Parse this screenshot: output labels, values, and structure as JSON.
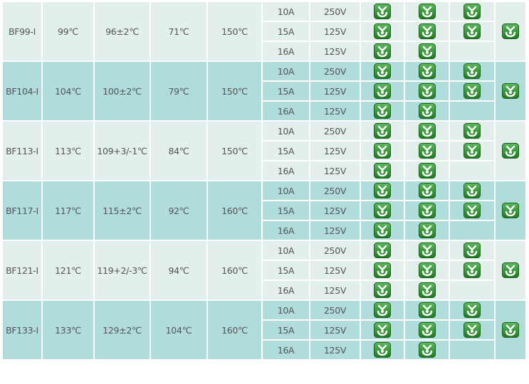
{
  "colors": {
    "row_light": "#e3efec",
    "row_teal": "#b0dcdc",
    "icon_green": "#2e8b2e",
    "text": "#555555"
  },
  "icon": "certification-mark-icon",
  "products": [
    {
      "model": "BF99-I",
      "t1": "99℃",
      "t2": "96±2℃",
      "t3": "71℃",
      "t4": "150℃",
      "ratings": [
        {
          "current": "10A",
          "voltage": "250V",
          "marks": [
            true,
            true,
            true
          ]
        },
        {
          "current": "15A",
          "voltage": "125V",
          "marks": [
            true,
            true,
            true
          ]
        },
        {
          "current": "16A",
          "voltage": "125V",
          "marks": [
            true,
            true,
            false
          ]
        }
      ],
      "group_mark": true
    },
    {
      "model": "BF104-I",
      "t1": "104℃",
      "t2": "100±2℃",
      "t3": "79℃",
      "t4": "150℃",
      "ratings": [
        {
          "current": "10A",
          "voltage": "250V",
          "marks": [
            true,
            true,
            true
          ]
        },
        {
          "current": "15A",
          "voltage": "125V",
          "marks": [
            true,
            true,
            true
          ]
        },
        {
          "current": "16A",
          "voltage": "125V",
          "marks": [
            true,
            true,
            false
          ]
        }
      ],
      "group_mark": true
    },
    {
      "model": "BF113-I",
      "t1": "113℃",
      "t2": "109+3/-1℃",
      "t3": "84℃",
      "t4": "150℃",
      "ratings": [
        {
          "current": "10A",
          "voltage": "250V",
          "marks": [
            true,
            true,
            true
          ]
        },
        {
          "current": "15A",
          "voltage": "125V",
          "marks": [
            true,
            true,
            true
          ]
        },
        {
          "current": "16A",
          "voltage": "125V",
          "marks": [
            true,
            true,
            false
          ]
        }
      ],
      "group_mark": true
    },
    {
      "model": "BF117-I",
      "t1": "117℃",
      "t2": "115±2℃",
      "t3": "92℃",
      "t4": "160℃",
      "ratings": [
        {
          "current": "10A",
          "voltage": "250V",
          "marks": [
            true,
            true,
            true
          ]
        },
        {
          "current": "15A",
          "voltage": "125V",
          "marks": [
            true,
            true,
            true
          ]
        },
        {
          "current": "16A",
          "voltage": "125V",
          "marks": [
            true,
            true,
            false
          ]
        }
      ],
      "group_mark": true
    },
    {
      "model": "BF121-I",
      "t1": "121℃",
      "t2": "119+2/-3℃",
      "t3": "94℃",
      "t4": "160℃",
      "ratings": [
        {
          "current": "10A",
          "voltage": "250V",
          "marks": [
            true,
            true,
            true
          ]
        },
        {
          "current": "15A",
          "voltage": "125V",
          "marks": [
            true,
            true,
            true
          ]
        },
        {
          "current": "16A",
          "voltage": "125V",
          "marks": [
            true,
            true,
            false
          ]
        }
      ],
      "group_mark": true
    },
    {
      "model": "BF133-I",
      "t1": "133℃",
      "t2": "129±2℃",
      "t3": "104℃",
      "t4": "160℃",
      "ratings": [
        {
          "current": "10A",
          "voltage": "250V",
          "marks": [
            true,
            true,
            true
          ]
        },
        {
          "current": "15A",
          "voltage": "125V",
          "marks": [
            true,
            true,
            true
          ]
        },
        {
          "current": "16A",
          "voltage": "125V",
          "marks": [
            true,
            true,
            false
          ]
        }
      ],
      "group_mark": true
    }
  ]
}
